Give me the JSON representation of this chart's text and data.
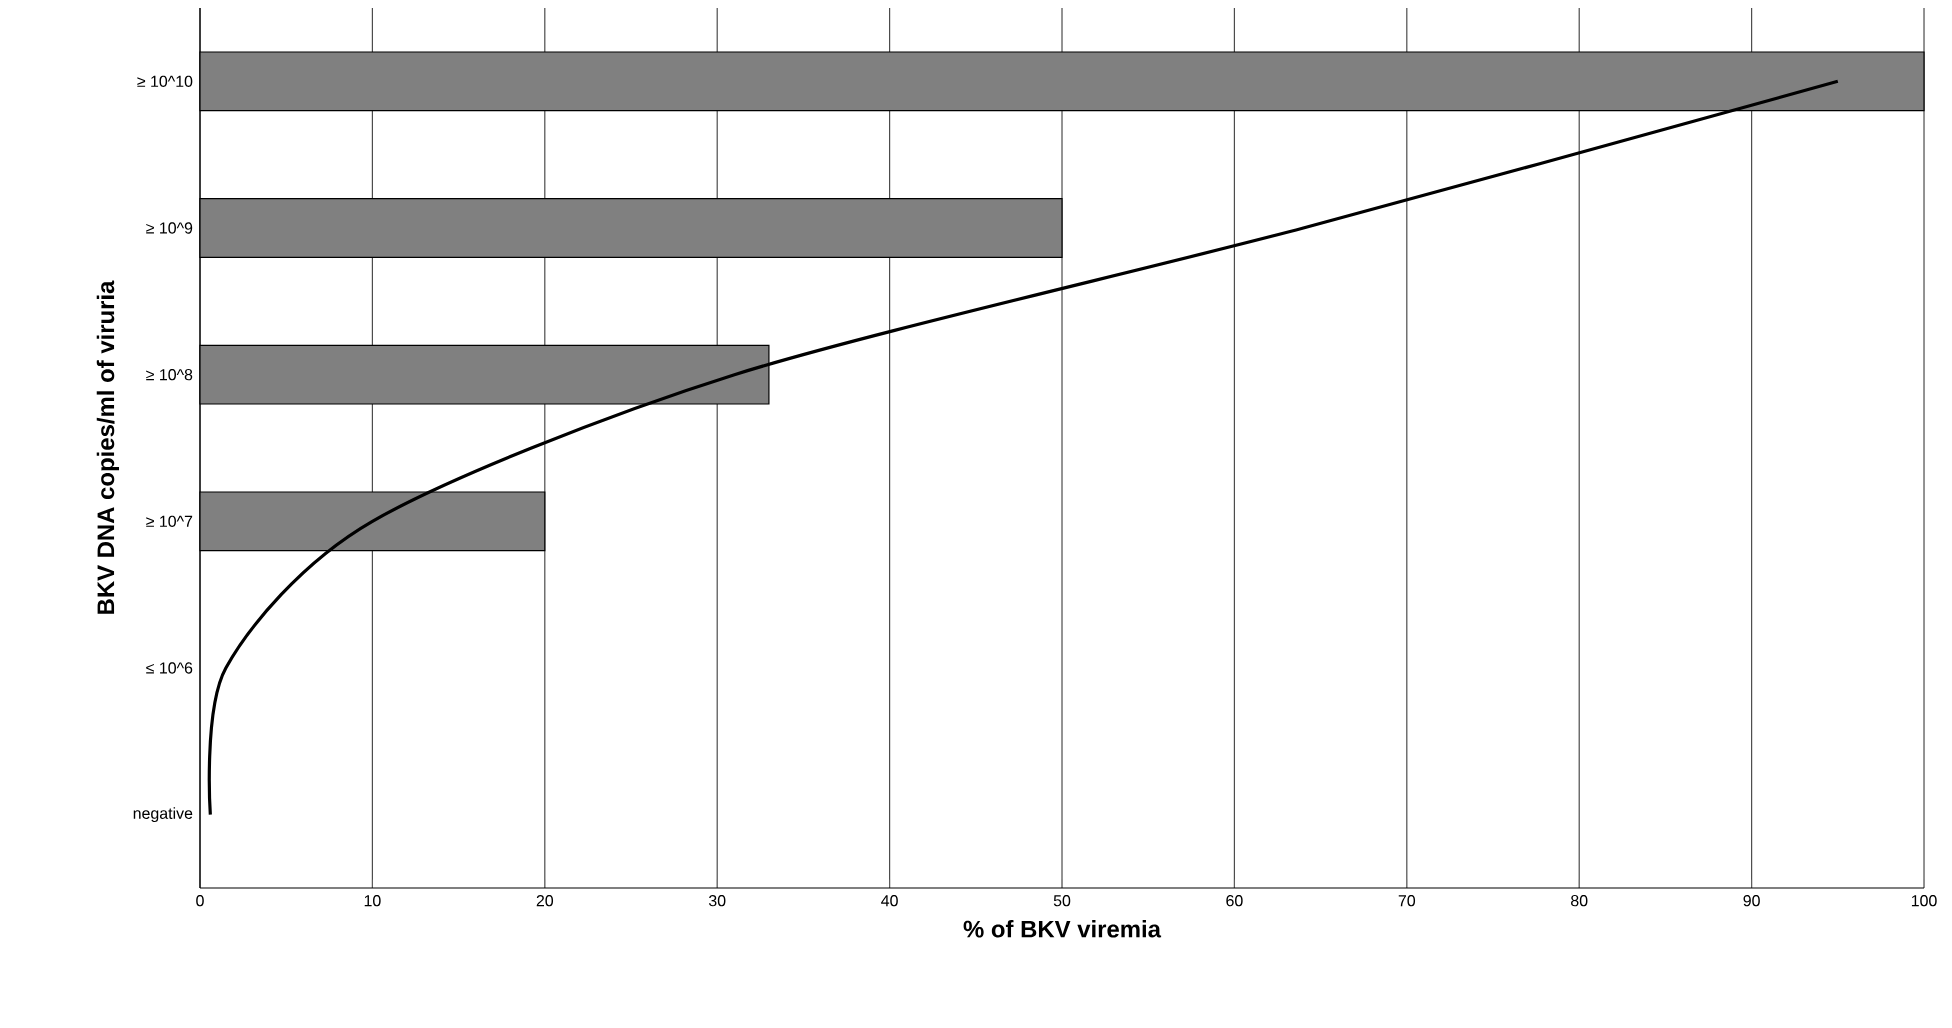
{
  "chart_data": {
    "type": "bar",
    "orientation": "horizontal",
    "xlabel": "% of BKV viremia",
    "ylabel": "BKV DNA copies/ml of viruria",
    "categories": [
      "≥ 10^10",
      "≥ 10^9",
      "≥ 10^8",
      "≥ 10^7",
      "≤ 10^6",
      "negative"
    ],
    "series": [
      {
        "color": "#808080",
        "values": [
          100,
          50,
          33,
          20,
          0,
          0
        ]
      },
      {
        "type": "line",
        "color": "#000000",
        "values": [
          95,
          64,
          31,
          10,
          1.5,
          0.6
        ]
      }
    ],
    "xlim": [
      0,
      100
    ],
    "xticks": [
      0,
      10,
      20,
      30,
      40,
      50,
      60,
      70,
      80,
      90,
      100
    ],
    "grid": "x",
    "line_style": "solid",
    "marker": "none"
  }
}
